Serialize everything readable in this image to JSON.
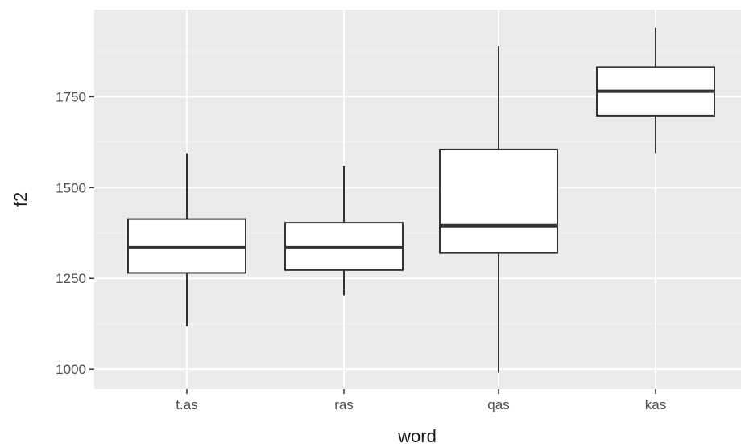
{
  "chart_data": {
    "type": "boxplot",
    "title": "",
    "xlabel": "word",
    "ylabel": "f2",
    "categories": [
      "t.as",
      "ras",
      "qas",
      "kas"
    ],
    "ylim": [
      945,
      1990
    ],
    "yticks": [
      1000,
      1250,
      1500,
      1750
    ],
    "ytick_labels": [
      "1000",
      "1250",
      "1500",
      "1750"
    ],
    "grid": true,
    "legend": "none",
    "boxes": [
      {
        "category": "t.as",
        "whisker_low": 1118,
        "q1": 1265,
        "median": 1335,
        "q3": 1413,
        "whisker_high": 1595
      },
      {
        "category": "ras",
        "whisker_low": 1203,
        "q1": 1273,
        "median": 1335,
        "q3": 1403,
        "whisker_high": 1560
      },
      {
        "category": "qas",
        "whisker_low": 990,
        "q1": 1320,
        "median": 1395,
        "q3": 1605,
        "whisker_high": 1890
      },
      {
        "category": "kas",
        "whisker_low": 1595,
        "q1": 1698,
        "median": 1765,
        "q3": 1832,
        "whisker_high": 1940
      }
    ]
  },
  "colors": {
    "panel_background": "#ebebeb",
    "grid_major": "#ffffff",
    "grid_minor": "#f5f5f5",
    "box_fill": "#ffffff",
    "box_stroke": "#333333",
    "tick_mark": "#333333",
    "tick_label": "#4d4d4d",
    "axis_title": "#1a1a1a"
  }
}
